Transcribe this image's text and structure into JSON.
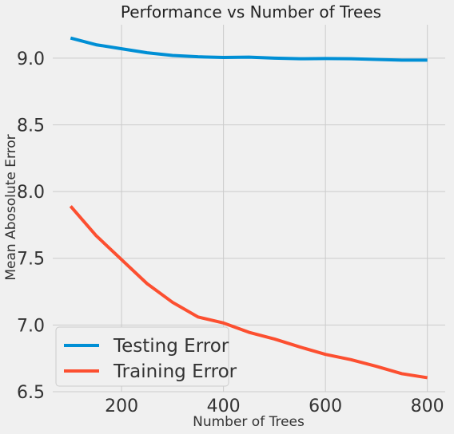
{
  "chart_data": {
    "type": "line",
    "title": "Performance vs Number of Trees",
    "xlabel": "Number of Trees",
    "ylabel": "Mean Abosolute Error",
    "xlim": [
      65,
      835
    ],
    "ylim": [
      6.5,
      9.25
    ],
    "xticks": [
      200,
      400,
      600,
      800
    ],
    "yticks": [
      6.5,
      7.0,
      7.5,
      8.0,
      8.5,
      9.0
    ],
    "xtick_labels": [
      "200",
      "400",
      "600",
      "800"
    ],
    "ytick_labels": [
      "6.5",
      "7.0",
      "7.5",
      "8.0",
      "8.5",
      "9.0"
    ],
    "grid": true,
    "legend_position": "bottom-left",
    "x": [
      100,
      150,
      200,
      250,
      300,
      350,
      400,
      450,
      500,
      550,
      600,
      650,
      700,
      750,
      800
    ],
    "series": [
      {
        "name": "Testing Error",
        "color": "#008fd5",
        "values": [
          9.15,
          9.1,
          9.07,
          9.04,
          9.02,
          9.01,
          9.005,
          9.007,
          9.0,
          8.995,
          8.997,
          8.995,
          8.99,
          8.985,
          8.985
        ]
      },
      {
        "name": "Training Error",
        "color": "#fc4f30",
        "values": [
          7.89,
          7.67,
          7.49,
          7.31,
          7.17,
          7.06,
          7.015,
          6.945,
          6.895,
          6.835,
          6.78,
          6.74,
          6.69,
          6.635,
          6.605
        ]
      }
    ]
  }
}
